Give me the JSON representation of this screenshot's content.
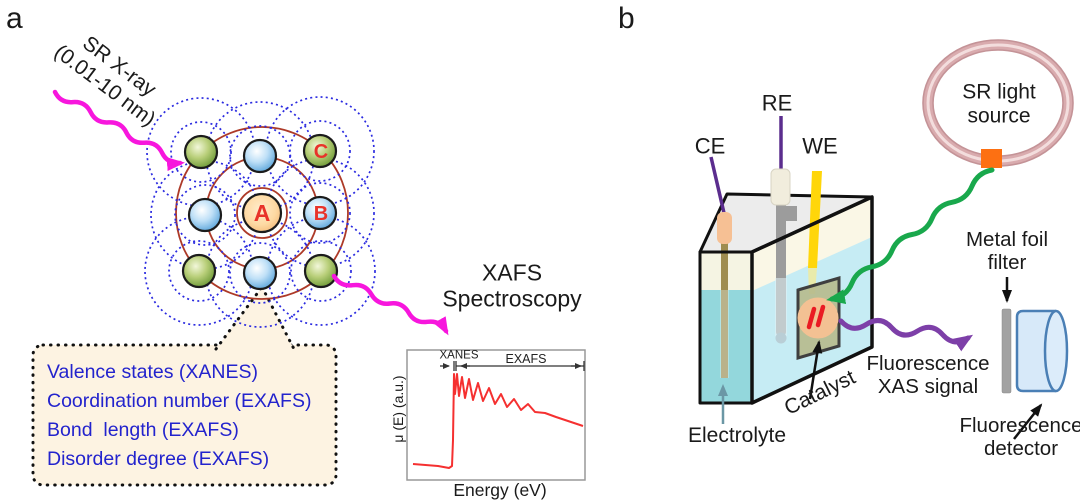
{
  "panels": {
    "a": {
      "tag": "a",
      "incident_beam": {
        "line1": "SR X-ray",
        "line2": "(0.01-10 nm)"
      },
      "atom_labels": {
        "absorber": "A",
        "neighbor_b": "B",
        "neighbor_c": "C"
      },
      "info_box": {
        "lines": [
          "Valence states (XANES)",
          "Coordination number (EXAFS)",
          "Bond  length (EXAFS)",
          "Disorder degree (EXAFS)"
        ]
      },
      "technique": {
        "line1": "XAFS",
        "line2": "Spectroscopy"
      },
      "spectrum": {
        "region_near_edge": "XANES",
        "region_extended": "EXAFS",
        "ylabel": "μ (E) (a.u.)",
        "xlabel": "Energy (eV)"
      }
    },
    "b": {
      "tag": "b",
      "electrodes": {
        "counter": "CE",
        "reference": "RE",
        "working": "WE"
      },
      "source": {
        "line1": "SR light",
        "line2": "source"
      },
      "filter": {
        "line1": "Metal foil",
        "line2": "filter"
      },
      "signal": {
        "line1": "Fluorescence",
        "line2": "XAS signal"
      },
      "detector": {
        "line1": "Fluorescence",
        "line2": "detector"
      },
      "electrolyte": "Electrolyte",
      "catalyst": "Catalyst"
    }
  },
  "colors": {
    "incident_beam": "#f716dd",
    "photoelectron_wave": "#ad3a28",
    "backscatter_wave": "#2a2ae0",
    "info_text": "#2323cd",
    "spectrum_curve": "#f53030",
    "sr_wave": "#19a84c",
    "fluorescence_wave": "#7d3fa8",
    "electrolyte_fill": "#c6ecf4",
    "storage_ring": "#d9abae",
    "exit_port": "#fd7012",
    "working_electrode": "#ffd60a",
    "detector_fill": "#d7e9f9"
  }
}
